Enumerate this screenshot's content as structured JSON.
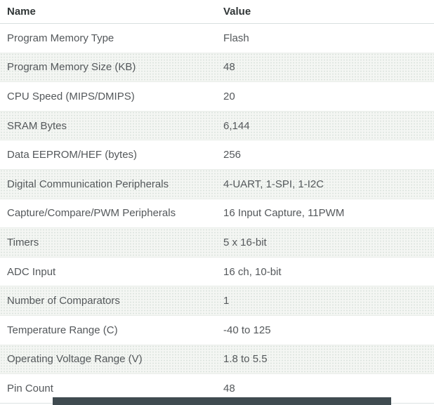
{
  "table": {
    "columns": [
      "Name",
      "Value"
    ],
    "rows": [
      {
        "name": "Program Memory Type",
        "value": "Flash"
      },
      {
        "name": "Program Memory Size (KB)",
        "value": "48"
      },
      {
        "name": "CPU Speed (MIPS/DMIPS)",
        "value": "20"
      },
      {
        "name": "SRAM Bytes",
        "value": "6,144"
      },
      {
        "name": "Data EEPROM/HEF (bytes)",
        "value": "256"
      },
      {
        "name": "Digital Communication Peripherals",
        "value": "4-UART, 1-SPI, 1-I2C"
      },
      {
        "name": "Capture/Compare/PWM Peripherals",
        "value": "16 Input Capture, 11PWM"
      },
      {
        "name": "Timers",
        "value": "5 x 16-bit"
      },
      {
        "name": "ADC Input",
        "value": "16 ch, 10-bit"
      },
      {
        "name": "Number of Comparators",
        "value": "1"
      },
      {
        "name": "Temperature Range (C)",
        "value": "-40 to 125"
      },
      {
        "name": "Operating Voltage Range (V)",
        "value": "1.8 to 5.5"
      },
      {
        "name": "Pin Count",
        "value": "48"
      }
    ]
  },
  "colors": {
    "stripe_background": "#f0f2ef",
    "header_text": "#303637",
    "body_text": "#54585b",
    "row_border": "#e0e6e4",
    "bottom_bar": "#3f4b50"
  }
}
